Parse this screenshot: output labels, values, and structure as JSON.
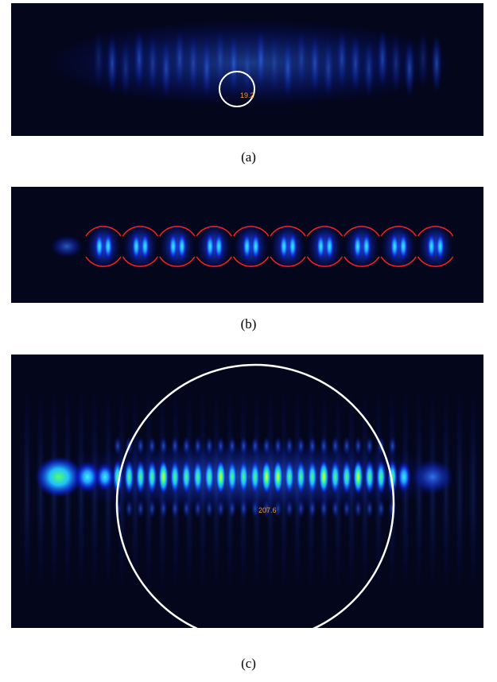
{
  "figure": {
    "panels": [
      {
        "label": "19.2",
        "caption": "(a)"
      },
      {
        "caption": "(b)"
      },
      {
        "label": "207.6",
        "caption": "(c)"
      }
    ]
  }
}
